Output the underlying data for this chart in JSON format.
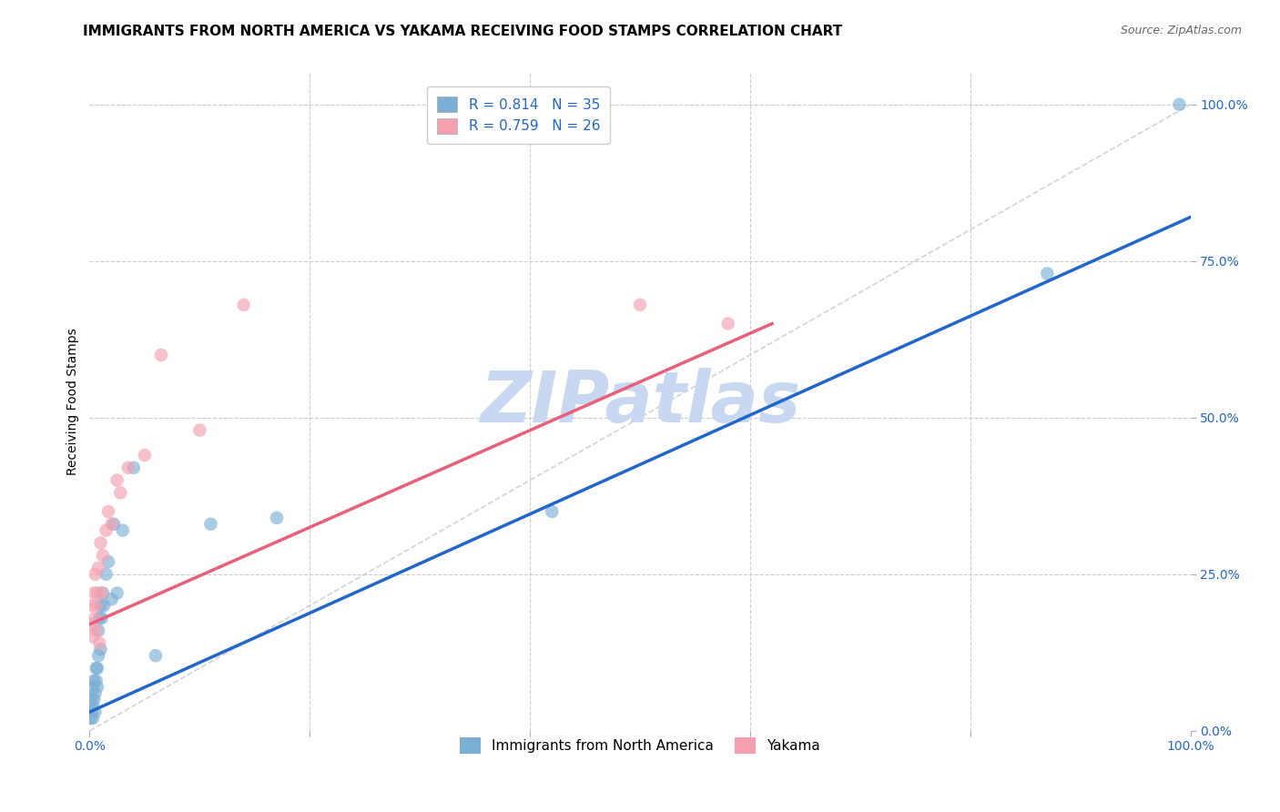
{
  "title": "IMMIGRANTS FROM NORTH AMERICA VS YAKAMA RECEIVING FOOD STAMPS CORRELATION CHART",
  "source": "Source: ZipAtlas.com",
  "ylabel": "Receiving Food Stamps",
  "ytick_labels": [
    "0.0%",
    "25.0%",
    "50.0%",
    "75.0%",
    "100.0%"
  ],
  "ytick_values": [
    0.0,
    0.25,
    0.5,
    0.75,
    1.0
  ],
  "xtick_labels": [
    "0.0%",
    "100.0%"
  ],
  "xtick_values": [
    0.0,
    1.0
  ],
  "blue_R": "0.814",
  "blue_N": "35",
  "pink_R": "0.759",
  "pink_N": "26",
  "blue_color": "#7bafd4",
  "pink_color": "#f4a0b0",
  "blue_line_color": "#2166c8",
  "pink_line_color": "#e8607a",
  "watermark": "ZIPatlas",
  "watermark_color": "#c8d8f0",
  "blue_scatter_x": [
    0.001,
    0.002,
    0.002,
    0.003,
    0.003,
    0.003,
    0.004,
    0.004,
    0.005,
    0.005,
    0.006,
    0.006,
    0.007,
    0.007,
    0.008,
    0.008,
    0.009,
    0.01,
    0.01,
    0.011,
    0.012,
    0.013,
    0.015,
    0.017,
    0.02,
    0.022,
    0.025,
    0.03,
    0.04,
    0.06,
    0.11,
    0.17,
    0.42,
    0.87,
    0.99
  ],
  "blue_scatter_y": [
    0.02,
    0.03,
    0.05,
    0.02,
    0.04,
    0.07,
    0.05,
    0.08,
    0.03,
    0.06,
    0.08,
    0.1,
    0.07,
    0.1,
    0.12,
    0.16,
    0.18,
    0.13,
    0.2,
    0.18,
    0.22,
    0.2,
    0.25,
    0.27,
    0.21,
    0.33,
    0.22,
    0.32,
    0.42,
    0.12,
    0.33,
    0.34,
    0.35,
    0.73,
    1.0
  ],
  "pink_scatter_x": [
    0.001,
    0.002,
    0.003,
    0.004,
    0.005,
    0.005,
    0.006,
    0.006,
    0.007,
    0.008,
    0.009,
    0.01,
    0.011,
    0.012,
    0.015,
    0.017,
    0.02,
    0.025,
    0.028,
    0.035,
    0.05,
    0.065,
    0.1,
    0.14,
    0.5,
    0.58
  ],
  "pink_scatter_y": [
    0.17,
    0.2,
    0.15,
    0.22,
    0.18,
    0.25,
    0.16,
    0.2,
    0.22,
    0.26,
    0.14,
    0.3,
    0.22,
    0.28,
    0.32,
    0.35,
    0.33,
    0.4,
    0.38,
    0.42,
    0.44,
    0.6,
    0.48,
    0.68,
    0.68,
    0.65
  ],
  "blue_line_x": [
    0.0,
    1.0
  ],
  "blue_line_y": [
    0.03,
    0.82
  ],
  "pink_line_x": [
    0.0,
    0.62
  ],
  "pink_line_y": [
    0.17,
    0.65
  ],
  "diag_line_color": "#c8c8c8",
  "title_fontsize": 11,
  "source_fontsize": 9,
  "axis_label_fontsize": 10,
  "tick_fontsize": 10,
  "legend_fontsize": 11,
  "legend_upper_label1": "R = 0.814   N = 35",
  "legend_upper_label2": "R = 0.759   N = 26",
  "legend_bottom_label1": "Immigrants from North America",
  "legend_bottom_label2": "Yakama",
  "xlim": [
    0.0,
    1.0
  ],
  "ylim": [
    0.0,
    1.05
  ]
}
